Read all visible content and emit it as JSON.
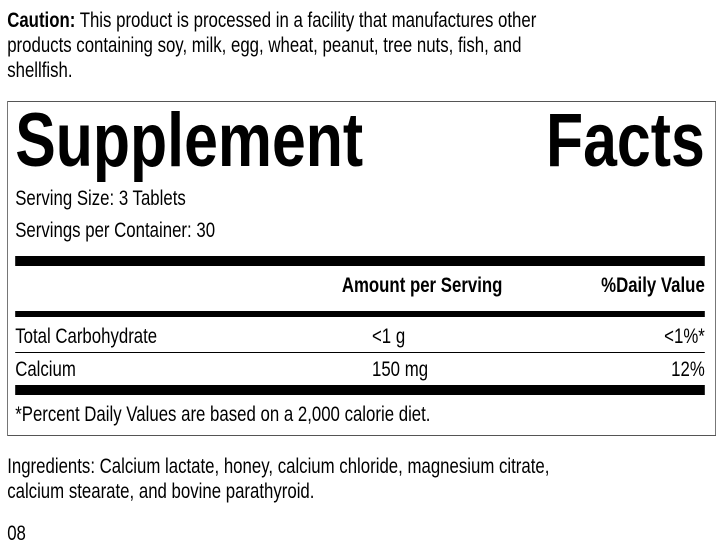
{
  "caution": {
    "label": "Caution:",
    "lines": [
      "This product is processed in a facility that manufactures other",
      "products containing soy, milk, egg, wheat, peanut, tree nuts, fish, and",
      "shellfish."
    ]
  },
  "panel": {
    "title_words": [
      "Supplement",
      "Facts"
    ],
    "serving_size": "Serving Size: 3 Tablets",
    "servings_per_container": "Servings per Container: 30",
    "headers": {
      "amount": "Amount per Serving",
      "daily_value": "%Daily Value"
    },
    "rows": [
      {
        "name": "Total Carbohydrate",
        "amount": "<1 g",
        "daily_value": "<1%*"
      },
      {
        "name": "Calcium",
        "amount": "150 mg",
        "daily_value": "12%"
      }
    ],
    "footnote": "*Percent Daily Values are based on a 2,000 calorie diet."
  },
  "ingredients": {
    "lines": [
      "Ingredients: Calcium lactate, honey, calcium chloride, magnesium citrate,",
      "calcium stearate, and bovine parathyroid."
    ]
  },
  "code": "08"
}
